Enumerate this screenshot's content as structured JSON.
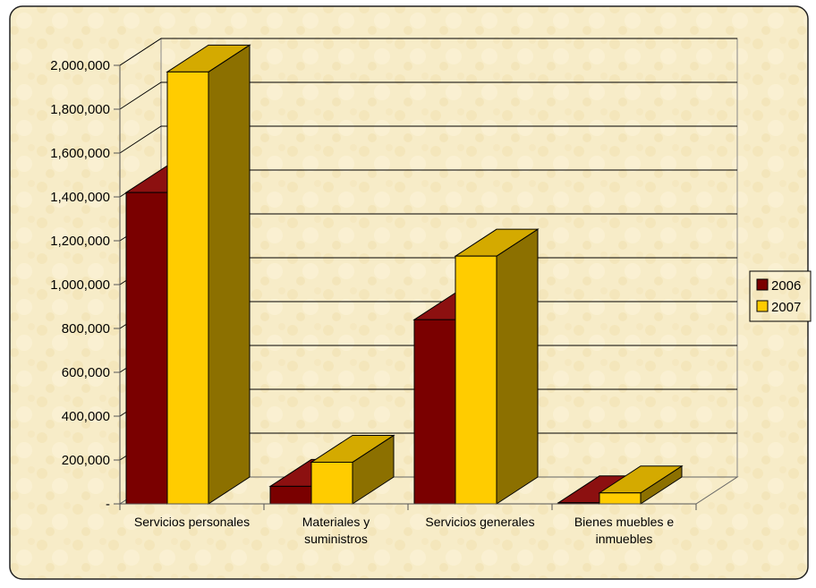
{
  "chart_data": {
    "type": "bar",
    "categories": [
      [
        "Servicios personales"
      ],
      [
        "Materiales y",
        "suministros"
      ],
      [
        "Servicios generales"
      ],
      [
        "Bienes muebles e",
        "inmuebles"
      ]
    ],
    "series": [
      {
        "name": "2006",
        "values": [
          1420000,
          80000,
          840000,
          5000
        ]
      },
      {
        "name": "2007",
        "values": [
          1970000,
          190000,
          1130000,
          50000
        ]
      }
    ],
    "y_ticks": [
      {
        "value": 0,
        "label": "-"
      },
      {
        "value": 200000,
        "label": "200,000"
      },
      {
        "value": 400000,
        "label": "400,000"
      },
      {
        "value": 600000,
        "label": "600,000"
      },
      {
        "value": 800000,
        "label": "800,000"
      },
      {
        "value": 1000000,
        "label": "1,000,000"
      },
      {
        "value": 1200000,
        "label": "1,200,000"
      },
      {
        "value": 1400000,
        "label": "1,400,000"
      },
      {
        "value": 1600000,
        "label": "1,600,000"
      },
      {
        "value": 1800000,
        "label": "1,800,000"
      },
      {
        "value": 2000000,
        "label": "2,000,000"
      }
    ],
    "ylim": [
      0,
      2000000
    ],
    "grid": true,
    "style": "3d-clustered-column",
    "legend_position": "right",
    "colors": {
      "2006": "#7a0000",
      "2006_top": "#8c1010",
      "2006_side": "#4e0000",
      "2007": "#ffcc00",
      "2007_top": "#d4aa00",
      "2007_side": "#8c7000",
      "background": "#f7ecc6",
      "gridline": "#000000"
    }
  }
}
